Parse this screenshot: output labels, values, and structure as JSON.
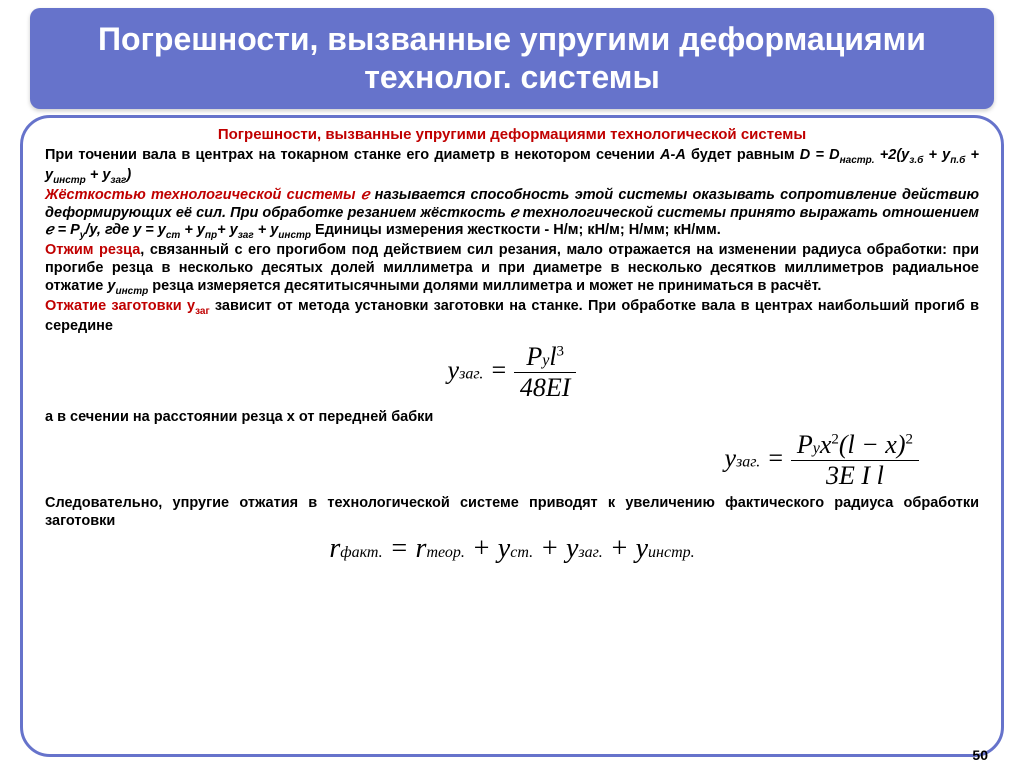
{
  "colors": {
    "title_bg": "#6673cb",
    "title_text": "#ffffff",
    "frame_border": "#6673cb",
    "red": "#c00000",
    "body": "#000000"
  },
  "title": "Погрешности, вызванные упругими деформациями технолог. системы",
  "subtitle": "Погрешности, вызванные упругими деформациями технологической системы",
  "p1_a": "При точении вала в центрах на токарном станке его диаметр в некотором сечении ",
  "p1_b": "А-А",
  "p1_c": " будет равным    ",
  "p1_formula": "D = D",
  "p1_sub1": "настр.",
  "p1_d": " +2(y",
  "p1_sub2": "з.б",
  "p1_e": " + y",
  "p1_sub3": "п.б",
  "p1_f": " + y",
  "p1_sub4": "инстр",
  "p1_g": " + y",
  "p1_sub5": "заг",
  "p1_h": ")",
  "p2_a": "Жёсткостью технологической системы ℯ",
  "p2_b": "  называется способность этой системы оказывать сопротивление действию деформирующих её сил. При обработке резанием жёсткость ℯ технологической системы принято выражать отношением ℯ = P",
  "p2_sub1": "y",
  "p2_c": "/y,  где y = y",
  "p2_sub2": "ст",
  "p2_d": " + y",
  "p2_sub3": "пр",
  "p2_e": "+  y",
  "p2_sub4": "заг",
  "p2_f": " + y",
  "p2_sub5": "инстр",
  "p2_g": "   Единицы измерения жесткости - Н/м; кН/м; Н/мм; кН/мм.",
  "p3_a": "Отжим резца",
  "p3_b": ", связанный с его прогибом под действием сил резания, мало отражается на изменении радиуса обработки: при прогибе резца в несколько десятых долей миллиметра и при диаметре в несколько десятков миллиметров радиальное отжатие ",
  "p3_c": "y",
  "p3_sub1": "инстр",
  "p3_d": " резца измеряется десятитысячными долями миллиметра и может не приниматься в расчёт.",
  "p4_a": "Отжатие заготовки y",
  "p4_sub1": "заг",
  "p4_b": " зависит от метода установки заготовки на станке. При обработке вала в центрах наибольший прогиб в середине",
  "f1_left": "y",
  "f1_lsub": "заг.",
  "f1_eq": " = ",
  "f1_num_a": "P",
  "f1_num_sub": "y",
  "f1_num_b": "l",
  "f1_num_sup": "3",
  "f1_den": "48EI",
  "p5": "а в сечении на расстоянии резца х  от передней бабки",
  "f2_left": "y",
  "f2_lsub": "заг.",
  "f2_eq": " = ",
  "f2_num_a": "P",
  "f2_num_sub": "y",
  "f2_num_b": "x",
  "f2_num_sup1": "2",
  "f2_num_c": "(l − x)",
  "f2_num_sup2": "2",
  "f2_den": "3E I l",
  "p6": "Следовательно, упругие отжатия в технологической системе приводят к увеличению фактического радиуса обработки заготовки",
  "f3_a": "r",
  "f3_s1": "факт.",
  "f3_b": " = r",
  "f3_s2": "теор.",
  "f3_c": " + y",
  "f3_s3": "ст.",
  "f3_d": " + y",
  "f3_s4": "заг.",
  "f3_e": " + y",
  "f3_s5": "инстр.",
  "page_number": "50"
}
